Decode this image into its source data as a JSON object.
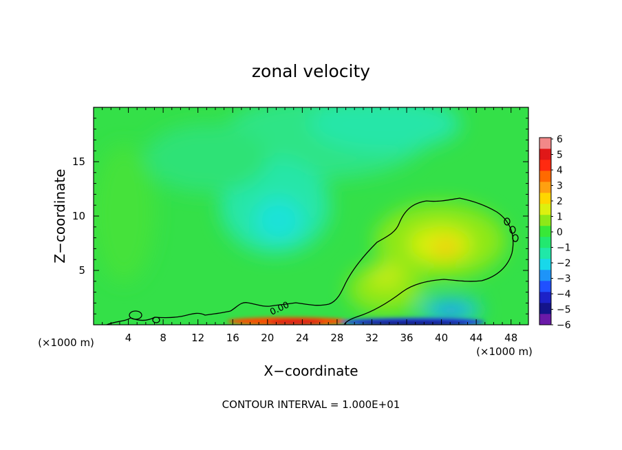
{
  "chart_data": {
    "type": "heatmap",
    "title": "zonal velocity",
    "xlabel": "X−coordinate",
    "ylabel": "Z−coordinate",
    "x_units": "(×1000 m)",
    "xlim": [
      0,
      50
    ],
    "ylim": [
      0,
      20
    ],
    "x_ticks": [
      "4",
      "8",
      "12",
      "16",
      "20",
      "24",
      "28",
      "32",
      "36",
      "40",
      "44",
      "48"
    ],
    "x_tick_values": [
      4,
      8,
      12,
      16,
      20,
      24,
      28,
      32,
      36,
      40,
      44,
      48
    ],
    "y_ticks": [
      "5",
      "10",
      "15"
    ],
    "y_tick_values": [
      5,
      10,
      15
    ],
    "colorbar": {
      "labels": [
        "6",
        "5",
        "4",
        "3",
        "2",
        "1",
        "0",
        "−1",
        "−2",
        "−3",
        "−4",
        "−5",
        "−6"
      ],
      "values": [
        6,
        5,
        4,
        3,
        2,
        1,
        0,
        -1,
        -2,
        -3,
        -4,
        -5,
        -6
      ],
      "colors": [
        "#6a1aa8",
        "#14148a",
        "#1c22c8",
        "#2050ff",
        "#1e94f8",
        "#18d8ea",
        "#20e8a8",
        "#22e870",
        "#38e838",
        "#8ee818",
        "#dcf010",
        "#ffd600",
        "#ffa010",
        "#ff6a00",
        "#ff2a10",
        "#e01818",
        "#f28888"
      ]
    },
    "contour_label": "0.00",
    "features": [
      {
        "kind": "positive-max",
        "x": 40.5,
        "z": 7.5,
        "value": 3
      },
      {
        "kind": "negative-min",
        "x": 22,
        "z": 8.5,
        "value": -2
      },
      {
        "kind": "negative-min",
        "x": 41,
        "z": 1.0,
        "value": -3
      },
      {
        "kind": "surface-positive-jet",
        "x_range": [
          16,
          29
        ],
        "value": 4
      },
      {
        "kind": "surface-negative-jet",
        "x_range": [
          29,
          46
        ],
        "value": -5
      }
    ],
    "grid": false,
    "legend": "right colorbar"
  },
  "footer": {
    "text": "CONTOUR INTERVAL = 1.000E+01"
  }
}
